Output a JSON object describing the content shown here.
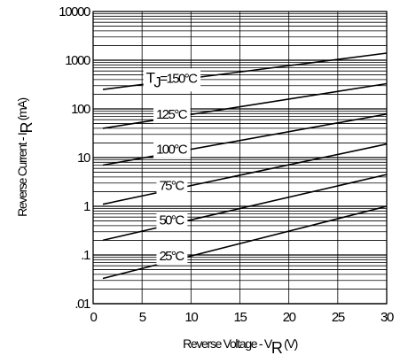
{
  "chart_data": {
    "type": "line",
    "title": "",
    "xlabel": {
      "main": "Reverse Voltage - V",
      "sub": "R",
      "unit": " (V)"
    },
    "ylabel": {
      "main": "Reverse Current - I",
      "sub": "R",
      "unit": " (mA)"
    },
    "x_ticks": [
      "0",
      "5",
      "10",
      "15",
      "20",
      "25",
      "30"
    ],
    "y_ticks": [
      ".01",
      ".1",
      "1",
      "10",
      "100",
      "1000",
      "10000"
    ],
    "xlim": [
      0,
      30
    ],
    "ylim": [
      0.01,
      10000
    ],
    "y_scale": "log",
    "grid": true,
    "series": [
      {
        "name": "150°C",
        "x": [
          1,
          30
        ],
        "y": [
          250,
          1400
        ]
      },
      {
        "name": "125°C",
        "x": [
          1,
          30
        ],
        "y": [
          40,
          330
        ]
      },
      {
        "name": "100°C",
        "x": [
          1,
          30
        ],
        "y": [
          7,
          78
        ]
      },
      {
        "name": "75°C",
        "x": [
          1,
          30
        ],
        "y": [
          1.1,
          19
        ]
      },
      {
        "name": "50°C",
        "x": [
          1,
          30
        ],
        "y": [
          0.2,
          4.5
        ]
      },
      {
        "name": "25°C",
        "x": [
          1,
          30
        ],
        "y": [
          0.033,
          1.0
        ]
      }
    ],
    "curve_labels": [
      {
        "text": "=150°C",
        "prefix": "T",
        "prefix_sub": "J",
        "series": "150°C"
      },
      {
        "text": "125°C",
        "series": "125°C"
      },
      {
        "text": "100°C",
        "series": "100°C"
      },
      {
        "text": "75°C",
        "series": "75°C"
      },
      {
        "text": "50°C",
        "series": "50°C"
      },
      {
        "text": "25°C",
        "series": "25°C"
      }
    ]
  }
}
